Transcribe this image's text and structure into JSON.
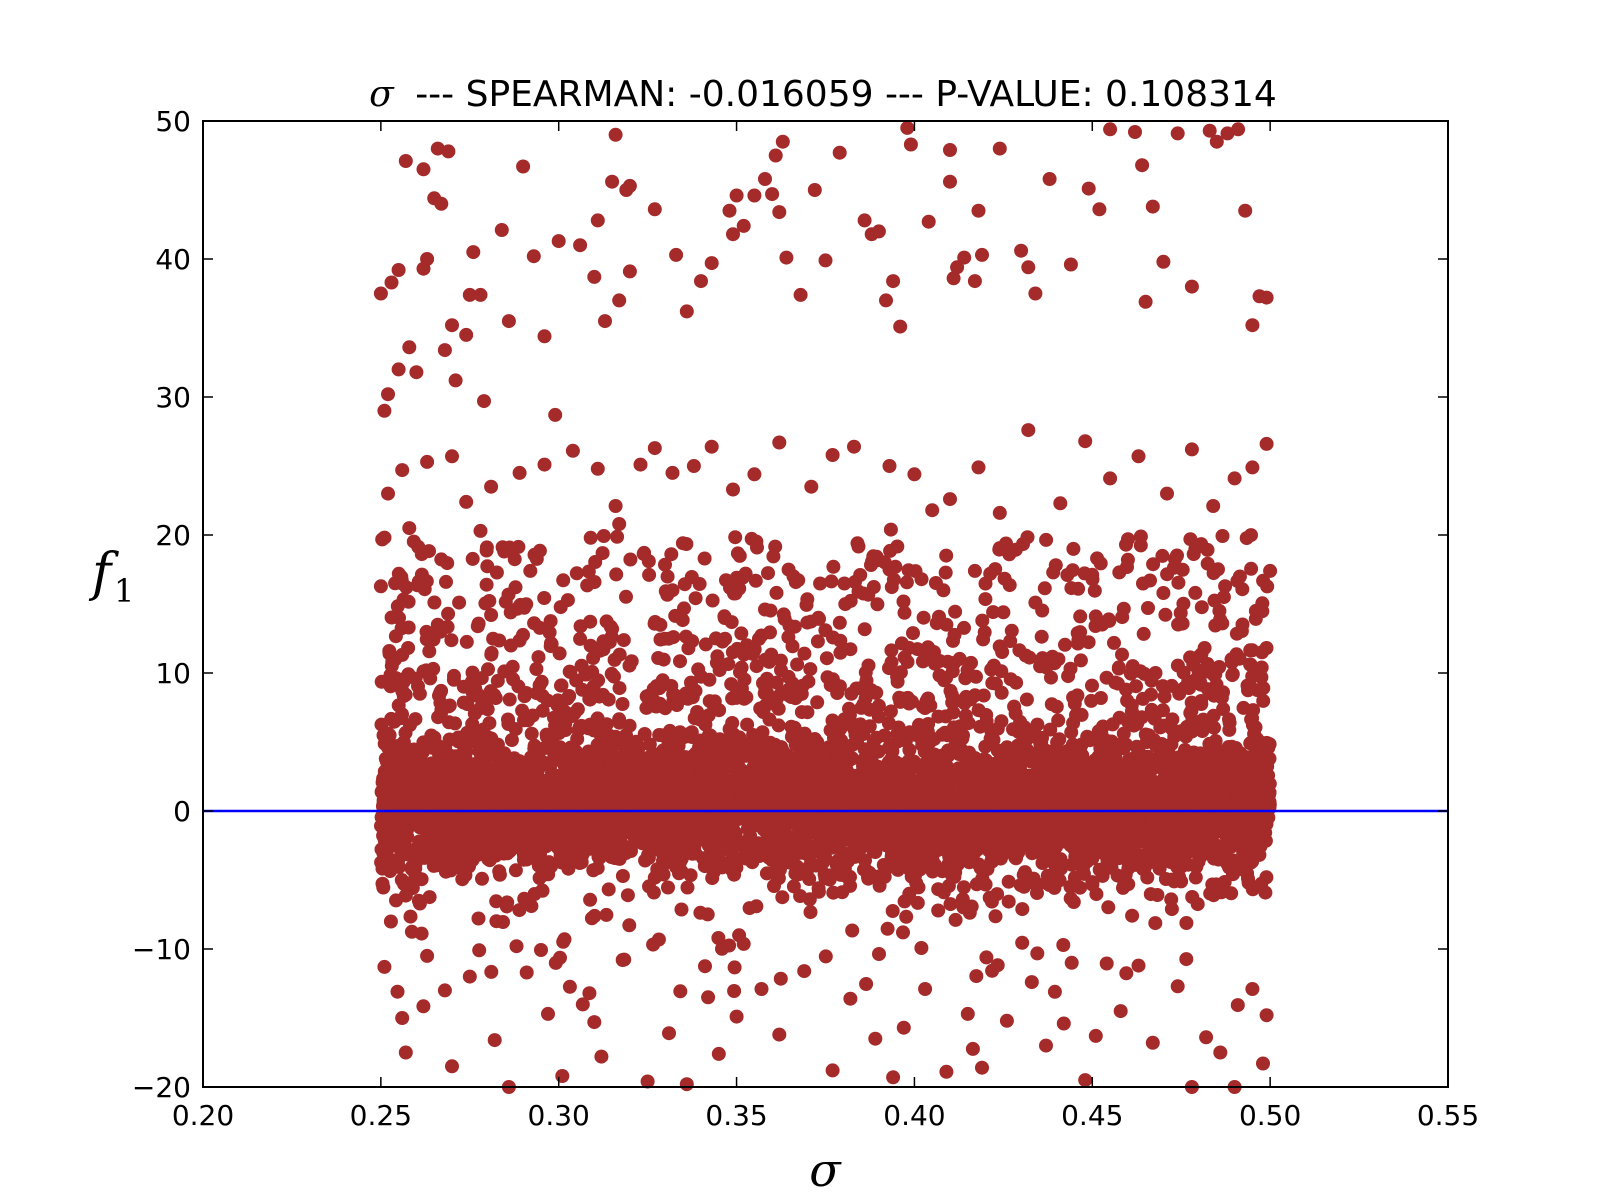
{
  "chart_data": {
    "type": "scatter",
    "title_symbol": "σ",
    "title": "--- SPEARMAN: -0.016059 --- P-VALUE: 0.108314",
    "xlabel": "σ",
    "ylabel": "f",
    "ylabel_subscript": "1",
    "xlim": [
      0.2,
      0.55
    ],
    "ylim": [
      -20,
      50
    ],
    "xticks": [
      "0.20",
      "0.25",
      "0.30",
      "0.35",
      "0.40",
      "0.45",
      "0.50",
      "0.55"
    ],
    "yticks": [
      "−20",
      "−10",
      "0",
      "10",
      "20",
      "30",
      "40",
      "50"
    ],
    "grid": false,
    "reference_line": {
      "y": 0,
      "color": "#0000ff"
    },
    "marker_color": "#a52a2a",
    "series": [
      {
        "x_range": [
          0.25,
          0.5
        ],
        "points": [
          [
            0.25,
            37.5
          ],
          [
            0.252,
            30.2
          ],
          [
            0.251,
            29.0
          ],
          [
            0.253,
            38.3
          ],
          [
            0.255,
            39.2
          ],
          [
            0.257,
            47.1
          ],
          [
            0.262,
            46.5
          ],
          [
            0.266,
            48.0
          ],
          [
            0.269,
            47.8
          ],
          [
            0.265,
            44.4
          ],
          [
            0.267,
            44.0
          ],
          [
            0.262,
            39.3
          ],
          [
            0.258,
            33.6
          ],
          [
            0.255,
            32.0
          ],
          [
            0.26,
            31.8
          ],
          [
            0.263,
            40.0
          ],
          [
            0.268,
            33.4
          ],
          [
            0.27,
            35.2
          ],
          [
            0.276,
            40.5
          ],
          [
            0.275,
            37.4
          ],
          [
            0.278,
            37.4
          ],
          [
            0.274,
            34.5
          ],
          [
            0.271,
            31.2
          ],
          [
            0.279,
            29.7
          ],
          [
            0.284,
            42.1
          ],
          [
            0.286,
            35.5
          ],
          [
            0.29,
            46.7
          ],
          [
            0.293,
            40.2
          ],
          [
            0.296,
            34.4
          ],
          [
            0.299,
            28.7
          ],
          [
            0.3,
            41.3
          ],
          [
            0.306,
            41.0
          ],
          [
            0.31,
            38.7
          ],
          [
            0.311,
            42.8
          ],
          [
            0.315,
            45.6
          ],
          [
            0.316,
            49.0
          ],
          [
            0.319,
            45.0
          ],
          [
            0.32,
            45.3
          ],
          [
            0.317,
            37.0
          ],
          [
            0.313,
            35.5
          ],
          [
            0.32,
            39.1
          ],
          [
            0.327,
            43.6
          ],
          [
            0.333,
            40.3
          ],
          [
            0.336,
            36.2
          ],
          [
            0.34,
            38.4
          ],
          [
            0.343,
            39.7
          ],
          [
            0.348,
            43.5
          ],
          [
            0.35,
            44.6
          ],
          [
            0.352,
            42.4
          ],
          [
            0.349,
            41.8
          ],
          [
            0.355,
            44.6
          ],
          [
            0.358,
            45.8
          ],
          [
            0.361,
            47.5
          ],
          [
            0.363,
            48.5
          ],
          [
            0.36,
            44.7
          ],
          [
            0.362,
            43.4
          ],
          [
            0.364,
            40.1
          ],
          [
            0.368,
            37.4
          ],
          [
            0.372,
            45.0
          ],
          [
            0.375,
            39.9
          ],
          [
            0.379,
            47.7
          ],
          [
            0.386,
            42.8
          ],
          [
            0.388,
            41.8
          ],
          [
            0.39,
            42.0
          ],
          [
            0.392,
            37.0
          ],
          [
            0.394,
            38.4
          ],
          [
            0.396,
            35.1
          ],
          [
            0.398,
            49.5
          ],
          [
            0.399,
            48.3
          ],
          [
            0.404,
            42.7
          ],
          [
            0.41,
            45.6
          ],
          [
            0.41,
            47.9
          ],
          [
            0.412,
            39.4
          ],
          [
            0.411,
            38.6
          ],
          [
            0.414,
            40.1
          ],
          [
            0.417,
            38.4
          ],
          [
            0.418,
            43.5
          ],
          [
            0.419,
            40.3
          ],
          [
            0.424,
            48.0
          ],
          [
            0.43,
            40.6
          ],
          [
            0.432,
            39.4
          ],
          [
            0.434,
            37.5
          ],
          [
            0.438,
            45.8
          ],
          [
            0.444,
            39.6
          ],
          [
            0.449,
            45.1
          ],
          [
            0.452,
            43.6
          ],
          [
            0.455,
            49.4
          ],
          [
            0.462,
            49.2
          ],
          [
            0.464,
            46.8
          ],
          [
            0.467,
            43.8
          ],
          [
            0.47,
            39.8
          ],
          [
            0.465,
            36.9
          ],
          [
            0.474,
            49.1
          ],
          [
            0.478,
            38.0
          ],
          [
            0.483,
            49.3
          ],
          [
            0.485,
            48.5
          ],
          [
            0.488,
            49.1
          ],
          [
            0.491,
            49.4
          ],
          [
            0.493,
            43.5
          ],
          [
            0.497,
            37.3
          ],
          [
            0.499,
            37.2
          ],
          [
            0.495,
            35.2
          ],
          [
            0.256,
            24.7
          ],
          [
            0.252,
            23.0
          ],
          [
            0.258,
            20.5
          ],
          [
            0.263,
            25.3
          ],
          [
            0.27,
            25.7
          ],
          [
            0.274,
            22.4
          ],
          [
            0.278,
            20.3
          ],
          [
            0.281,
            23.5
          ],
          [
            0.285,
            18.9
          ],
          [
            0.289,
            24.5
          ],
          [
            0.296,
            25.1
          ],
          [
            0.304,
            26.1
          ],
          [
            0.311,
            24.8
          ],
          [
            0.316,
            22.1
          ],
          [
            0.323,
            25.1
          ],
          [
            0.327,
            26.3
          ],
          [
            0.332,
            24.5
          ],
          [
            0.338,
            25.0
          ],
          [
            0.343,
            26.4
          ],
          [
            0.349,
            23.3
          ],
          [
            0.355,
            24.4
          ],
          [
            0.362,
            26.7
          ],
          [
            0.371,
            23.5
          ],
          [
            0.377,
            25.8
          ],
          [
            0.383,
            26.4
          ],
          [
            0.393,
            25.0
          ],
          [
            0.4,
            24.4
          ],
          [
            0.405,
            21.8
          ],
          [
            0.41,
            22.6
          ],
          [
            0.418,
            24.9
          ],
          [
            0.424,
            21.6
          ],
          [
            0.432,
            27.6
          ],
          [
            0.441,
            22.3
          ],
          [
            0.448,
            26.8
          ],
          [
            0.455,
            24.1
          ],
          [
            0.463,
            25.7
          ],
          [
            0.471,
            23.0
          ],
          [
            0.478,
            26.2
          ],
          [
            0.484,
            22.1
          ],
          [
            0.49,
            24.1
          ],
          [
            0.495,
            24.9
          ],
          [
            0.499,
            26.6
          ],
          [
            0.254,
            16.5
          ],
          [
            0.266,
            13.5
          ],
          [
            0.272,
            15.1
          ],
          [
            0.281,
            14.2
          ],
          [
            0.292,
            17.4
          ],
          [
            0.298,
            12.1
          ],
          [
            0.309,
            19.8
          ],
          [
            0.317,
            20.8
          ],
          [
            0.324,
            18.7
          ],
          [
            0.332,
            16.0
          ],
          [
            0.341,
            18.3
          ],
          [
            0.35,
            16.9
          ],
          [
            0.358,
            14.6
          ],
          [
            0.366,
            17.0
          ],
          [
            0.373,
            14.0
          ],
          [
            0.384,
            19.4
          ],
          [
            0.393,
            17.5
          ],
          [
            0.402,
            16.8
          ],
          [
            0.409,
            13.5
          ],
          [
            0.417,
            17.4
          ],
          [
            0.425,
            14.4
          ],
          [
            0.434,
            15.1
          ],
          [
            0.443,
            17.1
          ],
          [
            0.451,
            14.1
          ],
          [
            0.46,
            18.2
          ],
          [
            0.47,
            15.8
          ],
          [
            0.479,
            19.0
          ],
          [
            0.487,
            15.5
          ],
          [
            0.496,
            14.5
          ],
          [
            0.5,
            17.4
          ],
          [
            0.251,
            -11.3
          ],
          [
            0.256,
            -15.0
          ],
          [
            0.257,
            -17.5
          ],
          [
            0.263,
            -10.5
          ],
          [
            0.268,
            -13.0
          ],
          [
            0.27,
            -18.5
          ],
          [
            0.275,
            -12.0
          ],
          [
            0.282,
            -16.6
          ],
          [
            0.286,
            -20.0
          ],
          [
            0.291,
            -11.7
          ],
          [
            0.297,
            -14.7
          ],
          [
            0.301,
            -19.2
          ],
          [
            0.31,
            -15.3
          ],
          [
            0.312,
            -17.8
          ],
          [
            0.318,
            -10.8
          ],
          [
            0.325,
            -19.6
          ],
          [
            0.331,
            -16.1
          ],
          [
            0.336,
            -19.8
          ],
          [
            0.342,
            -13.5
          ],
          [
            0.345,
            -17.6
          ],
          [
            0.35,
            -14.9
          ],
          [
            0.357,
            -12.9
          ],
          [
            0.362,
            -16.2
          ],
          [
            0.369,
            -11.6
          ],
          [
            0.377,
            -18.8
          ],
          [
            0.382,
            -13.6
          ],
          [
            0.389,
            -16.5
          ],
          [
            0.394,
            -19.3
          ],
          [
            0.397,
            -15.7
          ],
          [
            0.403,
            -12.9
          ],
          [
            0.409,
            -18.9
          ],
          [
            0.415,
            -14.7
          ],
          [
            0.419,
            -18.6
          ],
          [
            0.426,
            -15.2
          ],
          [
            0.433,
            -12.4
          ],
          [
            0.437,
            -17.0
          ],
          [
            0.442,
            -15.4
          ],
          [
            0.448,
            -19.5
          ],
          [
            0.451,
            -16.3
          ],
          [
            0.458,
            -14.5
          ],
          [
            0.463,
            -11.2
          ],
          [
            0.467,
            -16.8
          ],
          [
            0.474,
            -12.7
          ],
          [
            0.478,
            -20.0
          ],
          [
            0.482,
            -16.4
          ],
          [
            0.486,
            -17.5
          ],
          [
            0.49,
            -20.0
          ],
          [
            0.495,
            -12.9
          ],
          [
            0.499,
            -14.8
          ],
          [
            0.498,
            -18.3
          ]
        ]
      }
    ]
  }
}
